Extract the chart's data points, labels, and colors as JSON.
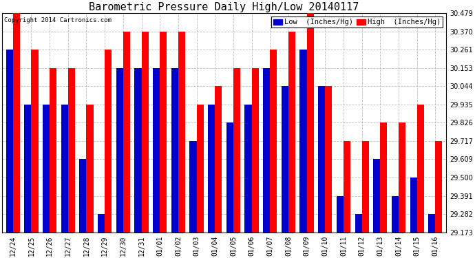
{
  "title": "Barometric Pressure Daily High/Low 20140117",
  "copyright": "Copyright 2014 Cartronics.com",
  "legend_low": "Low  (Inches/Hg)",
  "legend_high": "High  (Inches/Hg)",
  "dates": [
    "12/24",
    "12/25",
    "12/26",
    "12/27",
    "12/28",
    "12/29",
    "12/30",
    "12/31",
    "01/01",
    "01/02",
    "01/03",
    "01/04",
    "01/05",
    "01/06",
    "01/07",
    "01/08",
    "01/09",
    "01/10",
    "01/11",
    "01/12",
    "01/13",
    "01/14",
    "01/15",
    "01/16"
  ],
  "low_values": [
    30.261,
    29.935,
    29.935,
    29.935,
    29.609,
    29.282,
    30.153,
    30.153,
    30.153,
    30.153,
    29.717,
    29.935,
    29.826,
    29.935,
    30.153,
    30.044,
    30.261,
    30.044,
    29.391,
    29.282,
    29.609,
    29.391,
    29.5,
    29.282
  ],
  "high_values": [
    30.479,
    30.261,
    30.153,
    30.153,
    29.935,
    30.261,
    30.37,
    30.37,
    30.37,
    30.37,
    29.935,
    30.044,
    30.153,
    30.153,
    30.261,
    30.37,
    30.479,
    30.044,
    29.717,
    29.717,
    29.826,
    29.826,
    29.935,
    29.717
  ],
  "ylim_min": 29.173,
  "ylim_max": 30.479,
  "yticks": [
    29.173,
    29.282,
    29.391,
    29.5,
    29.609,
    29.717,
    29.826,
    29.935,
    30.044,
    30.153,
    30.261,
    30.37,
    30.479
  ],
  "bg_color": "#ffffff",
  "plot_bg_color": "#ffffff",
  "low_color": "#0000cc",
  "high_color": "#ff0000",
  "grid_color": "#bbbbbb",
  "bar_width": 0.38,
  "title_fontsize": 11,
  "tick_fontsize": 7,
  "legend_fontsize": 7.5
}
